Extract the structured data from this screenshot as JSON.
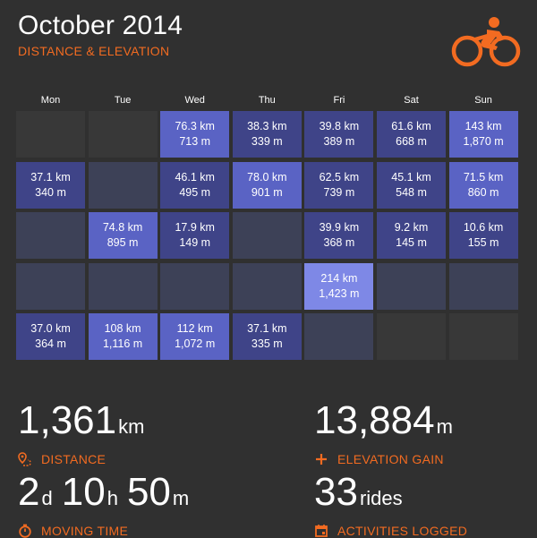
{
  "header": {
    "title": "October 2014",
    "subtitle": "DISTANCE & ELEVATION",
    "logo_icon": "cyclist-icon"
  },
  "colors": {
    "background": "#303030",
    "accent": "#f26b21",
    "empty_cell": "#383838",
    "no_ride_cell": "#3d4157",
    "low": "#3f4488",
    "mid": "#5a63c4",
    "high": "#7e88e6"
  },
  "weekdays": [
    "Mon",
    "Tue",
    "Wed",
    "Thu",
    "Fri",
    "Sat",
    "Sun"
  ],
  "calendar": [
    [
      {
        "distance": "",
        "elevation": "",
        "state": "outside"
      },
      {
        "distance": "",
        "elevation": "",
        "state": "outside"
      },
      {
        "distance": "76.3 km",
        "elevation": "713 m",
        "state": "mid"
      },
      {
        "distance": "38.3 km",
        "elevation": "339 m",
        "state": "low"
      },
      {
        "distance": "39.8 km",
        "elevation": "389 m",
        "state": "low"
      },
      {
        "distance": "61.6 km",
        "elevation": "668 m",
        "state": "low"
      },
      {
        "distance": "143 km",
        "elevation": "1,870 m",
        "state": "mid"
      }
    ],
    [
      {
        "distance": "37.1 km",
        "elevation": "340 m",
        "state": "low"
      },
      {
        "distance": "",
        "elevation": "",
        "state": "none"
      },
      {
        "distance": "46.1 km",
        "elevation": "495 m",
        "state": "low"
      },
      {
        "distance": "78.0 km",
        "elevation": "901 m",
        "state": "mid"
      },
      {
        "distance": "62.5 km",
        "elevation": "739 m",
        "state": "low"
      },
      {
        "distance": "45.1 km",
        "elevation": "548 m",
        "state": "low"
      },
      {
        "distance": "71.5 km",
        "elevation": "860 m",
        "state": "mid"
      }
    ],
    [
      {
        "distance": "",
        "elevation": "",
        "state": "none"
      },
      {
        "distance": "74.8 km",
        "elevation": "895 m",
        "state": "mid"
      },
      {
        "distance": "17.9 km",
        "elevation": "149 m",
        "state": "low"
      },
      {
        "distance": "",
        "elevation": "",
        "state": "none"
      },
      {
        "distance": "39.9 km",
        "elevation": "368 m",
        "state": "low"
      },
      {
        "distance": "9.2 km",
        "elevation": "145 m",
        "state": "low"
      },
      {
        "distance": "10.6 km",
        "elevation": "155 m",
        "state": "low"
      }
    ],
    [
      {
        "distance": "",
        "elevation": "",
        "state": "none"
      },
      {
        "distance": "",
        "elevation": "",
        "state": "none"
      },
      {
        "distance": "",
        "elevation": "",
        "state": "none"
      },
      {
        "distance": "",
        "elevation": "",
        "state": "none"
      },
      {
        "distance": "214 km",
        "elevation": "1,423 m",
        "state": "high"
      },
      {
        "distance": "",
        "elevation": "",
        "state": "none"
      },
      {
        "distance": "",
        "elevation": "",
        "state": "none"
      }
    ],
    [
      {
        "distance": "37.0 km",
        "elevation": "364 m",
        "state": "low"
      },
      {
        "distance": "108 km",
        "elevation": "1,116 m",
        "state": "mid"
      },
      {
        "distance": "112 km",
        "elevation": "1,072 m",
        "state": "mid"
      },
      {
        "distance": "37.1 km",
        "elevation": "335 m",
        "state": "low"
      },
      {
        "distance": "",
        "elevation": "",
        "state": "none"
      },
      {
        "distance": "",
        "elevation": "",
        "state": "outside"
      },
      {
        "distance": "",
        "elevation": "",
        "state": "outside"
      }
    ]
  ],
  "stats": {
    "distance": {
      "value": "1,361",
      "unit": "km",
      "label": "DISTANCE",
      "icon": "route-pin-icon"
    },
    "elevation": {
      "value": "13,884",
      "unit": "m",
      "label": "ELEVATION GAIN",
      "icon": "plus-icon"
    },
    "moving_time": {
      "days": "2",
      "days_unit": "d",
      "hours": "10",
      "hours_unit": "h",
      "minutes": "50",
      "minutes_unit": "m",
      "label": "MOVING TIME",
      "icon": "stopwatch-icon"
    },
    "activities": {
      "value": "33",
      "unit": "rides",
      "label": "ACTIVITIES LOGGED",
      "icon": "calendar-icon"
    }
  }
}
